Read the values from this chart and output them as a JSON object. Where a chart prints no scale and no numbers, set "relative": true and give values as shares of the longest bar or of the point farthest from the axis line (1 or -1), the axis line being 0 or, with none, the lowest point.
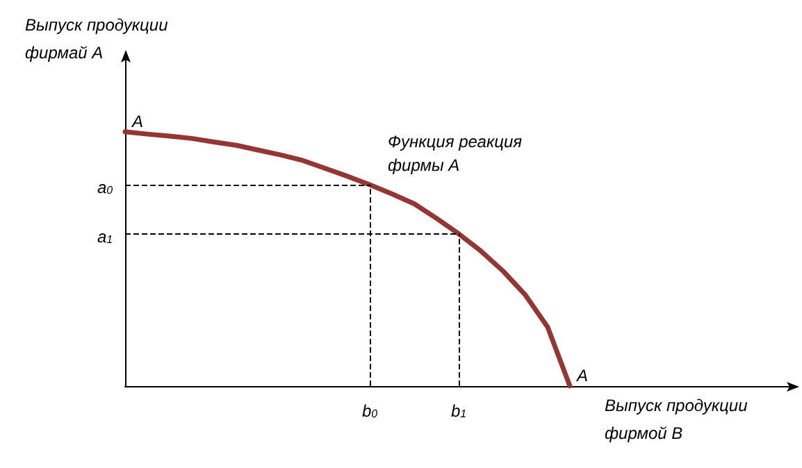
{
  "chart_data": {
    "type": "line",
    "relative": true,
    "xlabel": "Выпуск продукции\nфирмой В",
    "ylabel": "Выпуск продукции\nфирмай А",
    "categories": [
      null,
      null,
      null,
      null,
      null,
      null,
      null,
      null,
      null,
      null,
      null,
      "b$_{0}$",
      null,
      null,
      null,
      "b$_{1}$",
      null,
      null,
      null,
      null,
      null,
      null,
      null,
      null,
      null,
      null,
      null,
      null,
      null,
      null,
      null
    ],
    "series": [
      {
        "color": "#943634",
        "values": [
          1,
          0.991,
          0.983,
          0.974,
          0.96,
          0.947,
          0.928,
          0.909,
          0.887,
          0.856,
          0.825,
          0.792,
          0.756,
          0.717,
          0.66,
          0.599,
          0.531,
          0.452,
          0.358,
          0.232,
          0,
          null,
          null,
          null,
          null,
          null,
          null,
          null,
          null,
          null,
          null
        ]
      }
    ],
    "annotations": [
      "A",
      "A",
      "Функция реакция\nфирмы А",
      {
        "text": "a$_{0}$",
        "x": "b$_{0}$",
        "y": 0.792
      },
      {
        "text": "a$_{1}$",
        "x": "b$_{1}$",
        "y": 0.599
      }
    ],
    "marker": "none",
    "line_style": "solid"
  }
}
